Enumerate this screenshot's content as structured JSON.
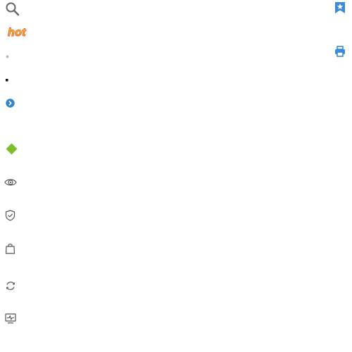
{
  "badges": {
    "hot": "hot"
  },
  "icons": {
    "search": "search-icon",
    "bookmark_star": "bookmark-star-icon",
    "print": "print-icon",
    "small_dot": "dot-icon",
    "square_dot": "square-bullet-icon",
    "chevron_circle": "chevron-right-circle-icon",
    "diamond": "diamond-icon",
    "eye": "eye-icon",
    "shield": "shield-check-icon",
    "bag": "shopping-bag-icon",
    "refresh": "refresh-icon",
    "monitor": "activity-monitor-icon"
  },
  "colors": {
    "icon_gray": "#555555",
    "light_gray": "#bbbbbb",
    "accent_blue": "#3b8bd9",
    "hot_orange": "#f7a21b",
    "hot_red": "#e8262a",
    "diamond_green": "#7cbf2a"
  }
}
